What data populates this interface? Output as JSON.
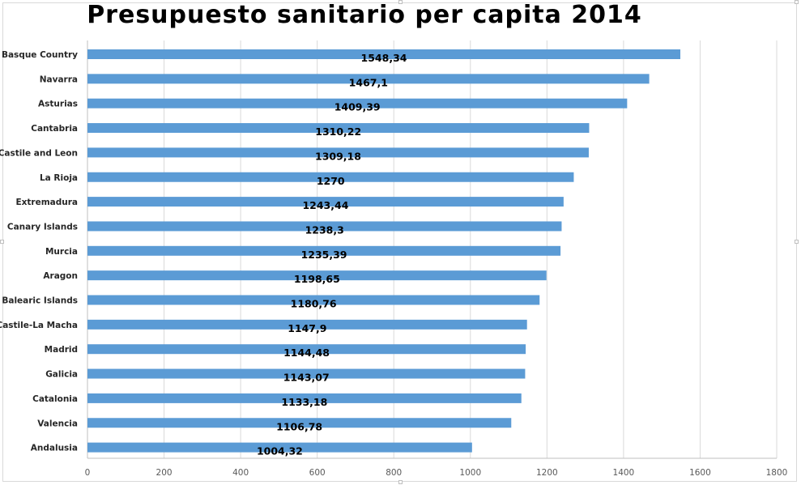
{
  "chart_data": {
    "type": "bar",
    "orientation": "horizontal",
    "title": "Presupuesto sanitario per capita 2014",
    "xlabel": "",
    "ylabel": "",
    "categories": [
      "Basque Country",
      "Navarra",
      "Asturias",
      "Cantabria",
      "Castile and Leon",
      "La Rioja",
      "Extremadura",
      "Canary Islands",
      "Murcia",
      "Aragon",
      "Balearic Islands",
      "Castile-La Macha",
      "Madrid",
      "Galicia",
      "Catalonia",
      "Valencia",
      "Andalusia"
    ],
    "values": [
      1548.34,
      1467.1,
      1409.39,
      1310.22,
      1309.18,
      1270,
      1243.44,
      1238.3,
      1235.39,
      1198.65,
      1180.76,
      1147.9,
      1144.48,
      1143.07,
      1133.18,
      1106.78,
      1004.32
    ],
    "data_labels": [
      "1548,34",
      "1467,1",
      "1409,39",
      "1310,22",
      "1309,18",
      "1270",
      "1243,44",
      "1238,3",
      "1235,39",
      "1198,65",
      "1180,76",
      "1147,9",
      "1144,48",
      "1143,07",
      "1133,18",
      "1106,78",
      "1004,32"
    ],
    "xlim": [
      0,
      1800
    ],
    "xticks": [
      0,
      200,
      400,
      600,
      800,
      1000,
      1200,
      1400,
      1600,
      1800
    ],
    "grid": true,
    "legend": "none",
    "colors": {
      "bar": "#5b9bd5",
      "grid": "#d9d9d9",
      "axis": "#bfbfbf"
    }
  }
}
